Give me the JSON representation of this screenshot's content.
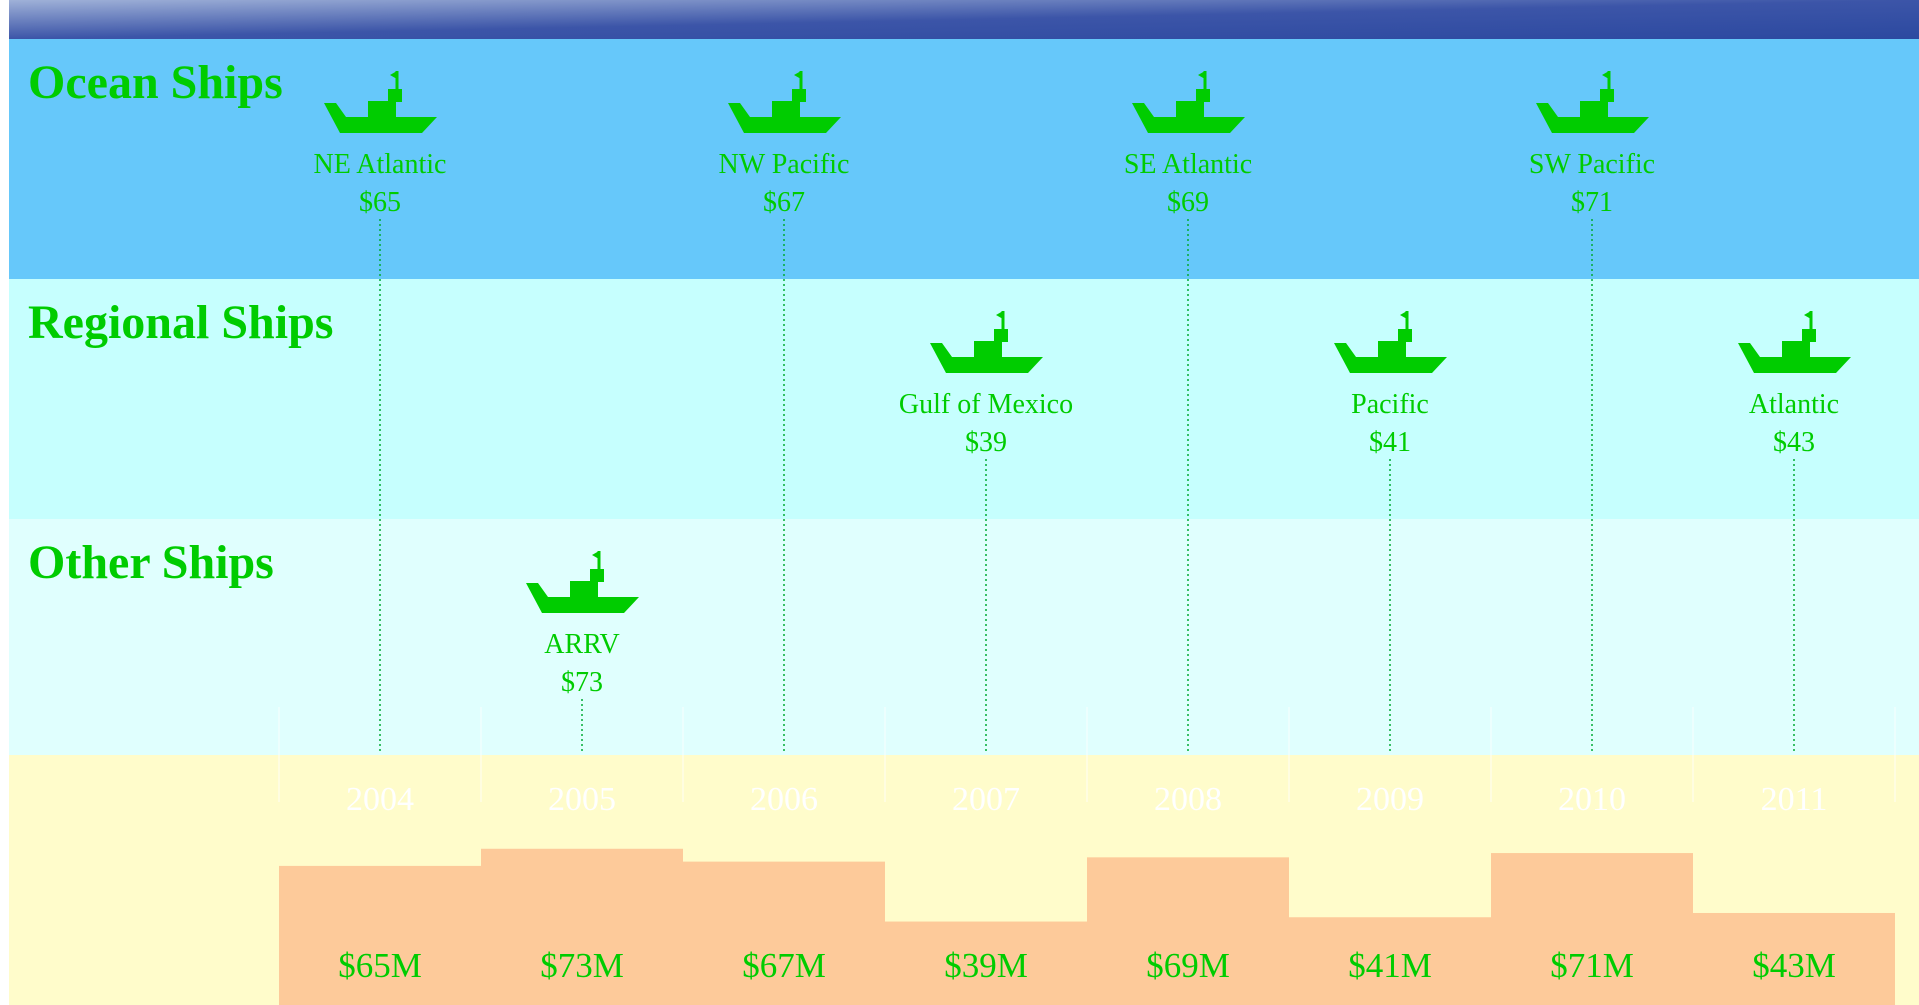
{
  "lanes": [
    {
      "title": "Ocean Ships",
      "ships": [
        {
          "name": "NE Atlantic",
          "cost": "$65",
          "year": "2004"
        },
        {
          "name": "NW Pacific",
          "cost": "$67",
          "year": "2006"
        },
        {
          "name": "SE Atlantic",
          "cost": "$69",
          "year": "2008"
        },
        {
          "name": "SW Pacific",
          "cost": "$71",
          "year": "2010"
        }
      ]
    },
    {
      "title": "Regional Ships",
      "ships": [
        {
          "name": "Gulf of Mexico",
          "cost": "$39",
          "year": "2007"
        },
        {
          "name": "Pacific",
          "cost": "$41",
          "year": "2009"
        },
        {
          "name": "Atlantic",
          "cost": "$43",
          "year": "2011"
        }
      ]
    },
    {
      "title": "Other Ships",
      "ships": [
        {
          "name": "ARRV",
          "cost": "$73",
          "year": "2005"
        }
      ]
    }
  ],
  "chart_data": {
    "type": "bar",
    "categories": [
      "2004",
      "2005",
      "2006",
      "2007",
      "2008",
      "2009",
      "2010",
      "2011"
    ],
    "values": [
      65,
      73,
      67,
      39,
      69,
      41,
      71,
      43
    ],
    "value_labels": [
      "$65M",
      "$73M",
      "$67M",
      "$39M",
      "$69M",
      "$41M",
      "$71M",
      "$43M"
    ],
    "color": "#fdca9a"
  }
}
